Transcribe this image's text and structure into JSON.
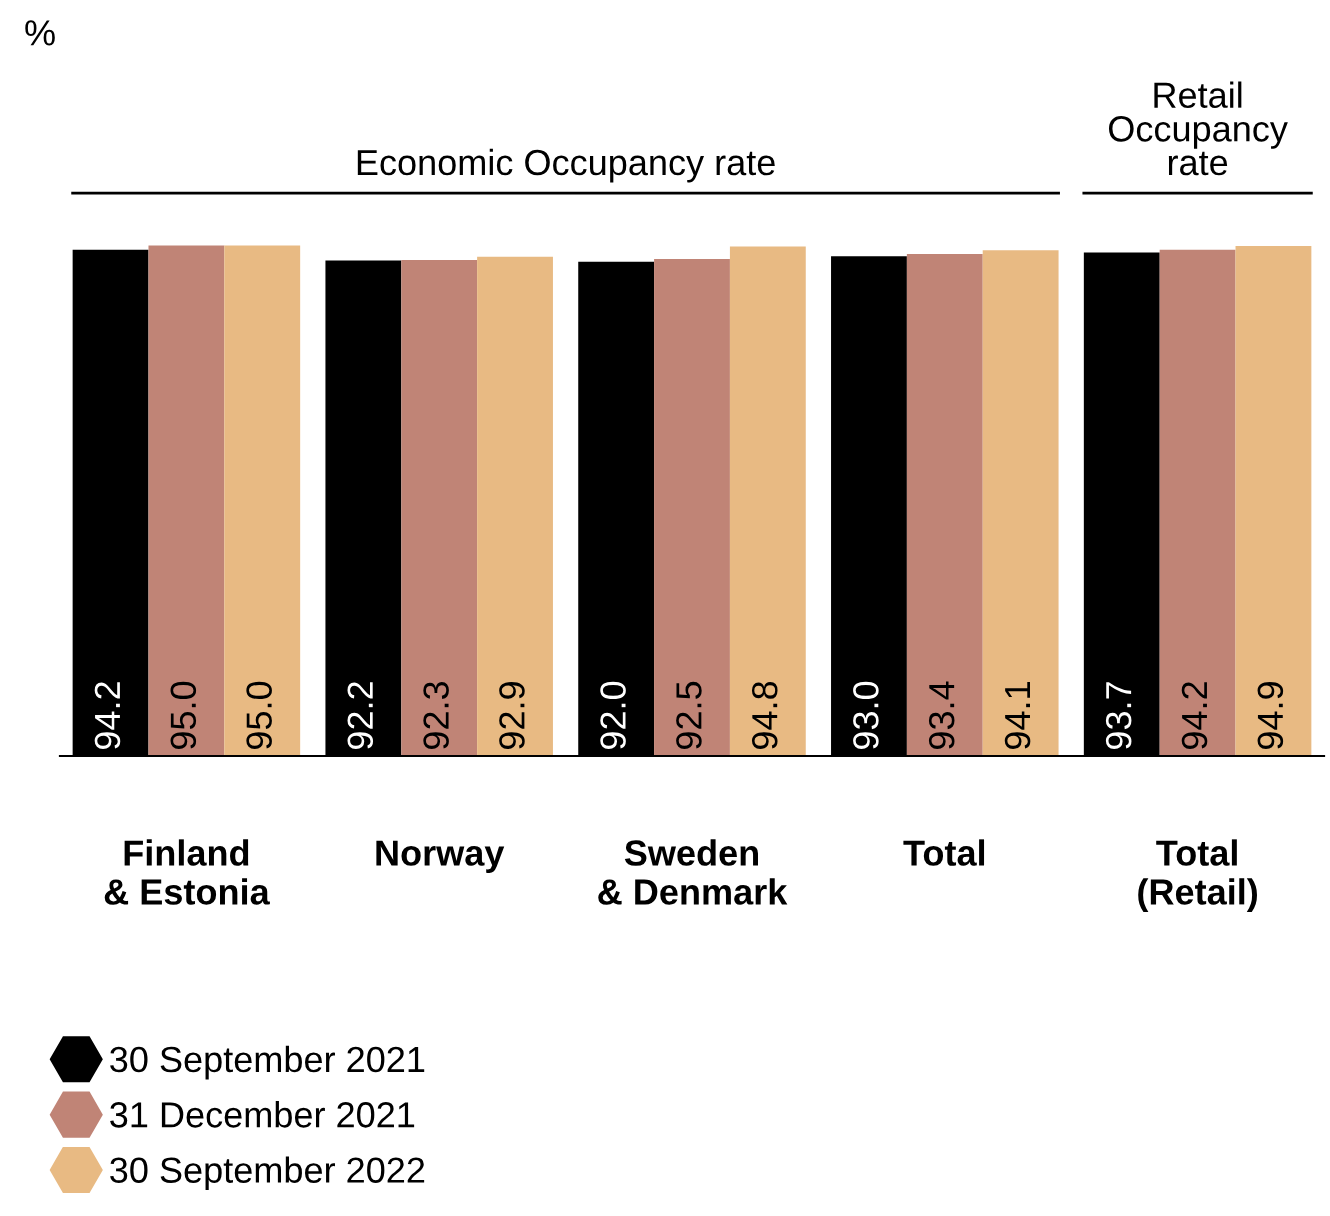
{
  "chart_data": {
    "type": "bar",
    "categories": [
      "Finland\n& Estonia",
      "Norway",
      "Sweden\n& Denmark",
      "Total",
      "Total\n(Retail)"
    ],
    "series": [
      {
        "name": "30 September 2021",
        "color": "#000000",
        "values": [
          94.2,
          92.2,
          92.0,
          93.0,
          93.7
        ],
        "value_labels": [
          "94.2",
          "92.2",
          "92.0",
          "93.0",
          "93.7"
        ]
      },
      {
        "name": "31 December 2021",
        "color": "#c08476",
        "values": [
          95.0,
          92.3,
          92.5,
          93.4,
          94.2
        ],
        "value_labels": [
          "95.0",
          "92.3",
          "92.5",
          "93.4",
          "94.2"
        ]
      },
      {
        "name": "30 September 2022",
        "color": "#e8ba83",
        "values": [
          95.0,
          92.9,
          94.8,
          94.1,
          94.9
        ],
        "value_labels": [
          "95.0",
          "92.9",
          "94.8",
          "94.1",
          "94.9"
        ]
      }
    ],
    "annotations": [
      "%",
      "Economic Occupancy rate",
      "Retail\nOccupancy\nrate"
    ],
    "legend": "bottom left",
    "grid": false
  }
}
